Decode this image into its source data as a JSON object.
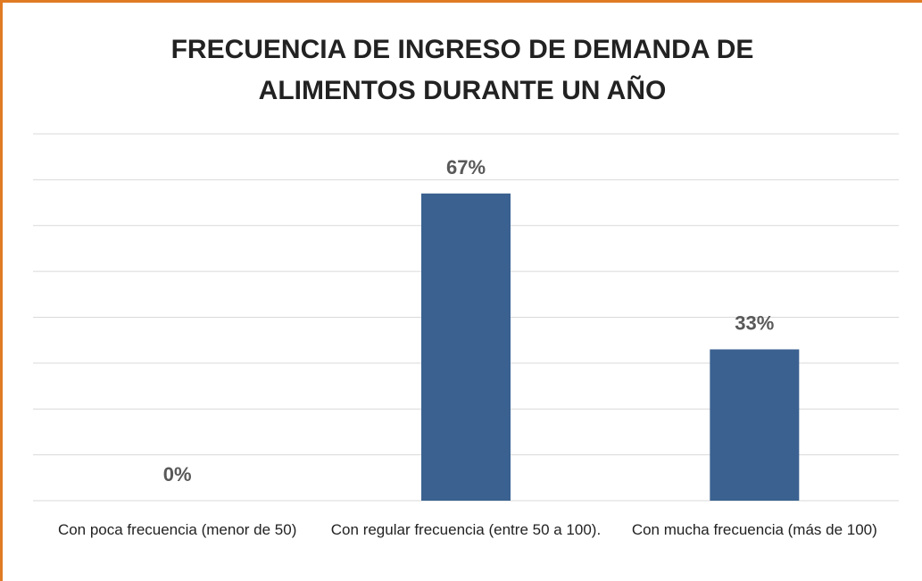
{
  "chart_data": {
    "type": "bar",
    "title": "FRECUENCIA DE INGRESO DE DEMANDA DE ALIMENTOS DURANTE UN AÑO",
    "categories": [
      "Con poca frecuencia  (menor de 50)",
      "Con regular frecuencia  (entre 50 a 100).",
      "Con mucha frecuencia  (más de 100)"
    ],
    "values": [
      0,
      67,
      33
    ],
    "value_labels": [
      "0%",
      "67%",
      "33%"
    ],
    "color": "#3a6190",
    "ylim": [
      0,
      80
    ],
    "yticks": [
      0,
      10,
      20,
      30,
      40,
      50,
      60,
      70,
      80
    ],
    "grid": true
  }
}
